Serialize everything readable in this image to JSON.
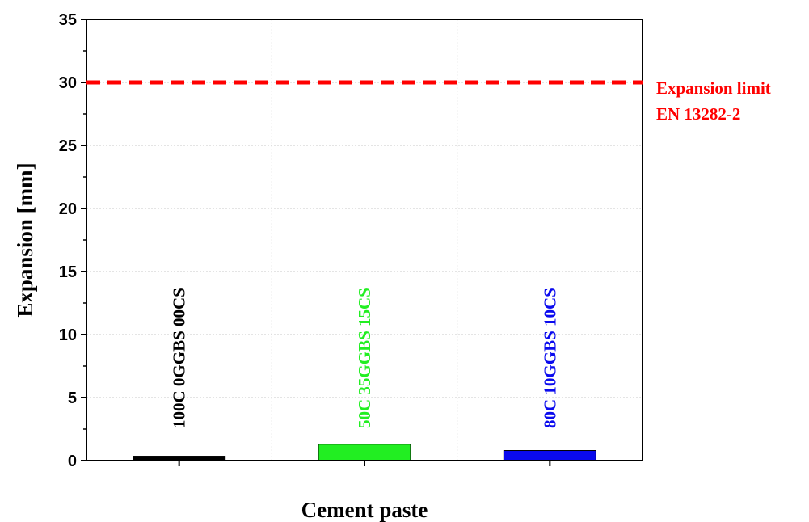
{
  "chart_data": {
    "type": "bar",
    "categories": [
      "100C 0GGBS 00CS",
      "50C 35GGBS 15CS",
      "80C 10GGBS 10CS"
    ],
    "values": [
      0.35,
      1.3,
      0.8
    ],
    "colors": [
      "#000000",
      "#22ee22",
      "#0a0aee"
    ],
    "xlabel": "Cement paste",
    "ylabel": "Expansion [mm]",
    "ylim": [
      0,
      35
    ],
    "yticks": [
      0,
      5,
      10,
      15,
      20,
      25,
      30,
      35
    ],
    "grid": true,
    "limit_line": {
      "value": 30,
      "color": "#ff0000",
      "style": "dashed",
      "label_line1": "Expansion limit",
      "label_line2": "EN 13282-2"
    }
  }
}
